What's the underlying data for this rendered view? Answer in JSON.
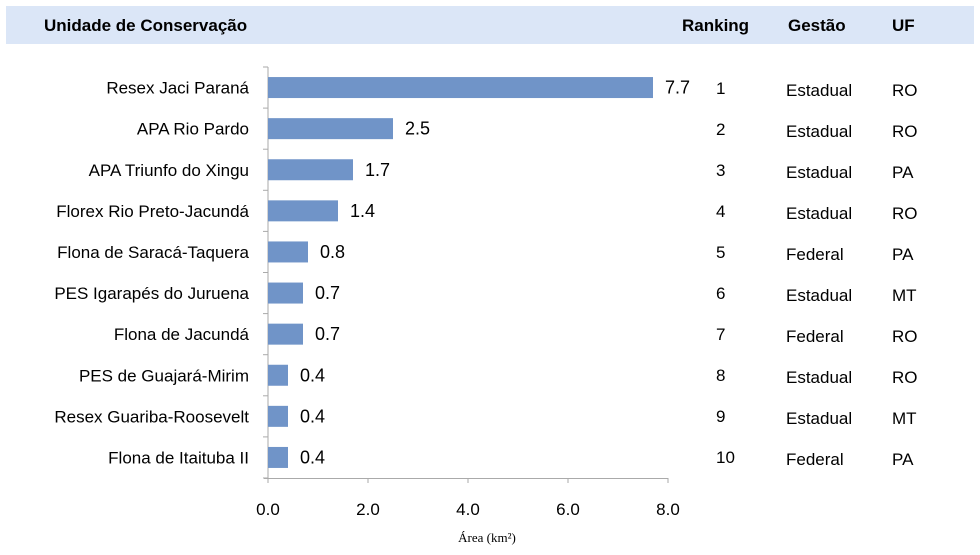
{
  "header": {
    "unit_label": "Unidade de Conservação",
    "ranking_label": "Ranking",
    "gestao_label": "Gestão",
    "uf_label": "UF"
  },
  "colors": {
    "header_bg": "#dbe6f7",
    "bar": "#7094c8",
    "axis": "#aaaaaa"
  },
  "chart_data": {
    "type": "bar",
    "orientation": "horizontal",
    "categories": [
      "Resex  Jaci Paraná",
      "APA  Rio Pardo",
      "APA  Triunfo do Xingu",
      "Florex  Rio Preto-Jacundá",
      "Flona de Saracá-Taquera",
      "PES  Igarapés do Juruena",
      "Flona de Jacundá",
      "PES de Guajará-Mirim",
      "Resex  Guariba-Roosevelt",
      "Flona de Itaituba II"
    ],
    "values": [
      7.7,
      2.5,
      1.7,
      1.4,
      0.8,
      0.7,
      0.7,
      0.4,
      0.4,
      0.4
    ],
    "value_labels": [
      "7.7",
      "2.5",
      "1.7",
      "1.4",
      "0.8",
      "0.7",
      "0.7",
      "0.4",
      "0.4",
      "0.4"
    ],
    "xlabel": "Área (km²)",
    "xlim": [
      0,
      8
    ],
    "xticks": [
      "0.0",
      "2.0",
      "4.0",
      "6.0",
      "8.0"
    ],
    "grid": false
  },
  "rows": [
    {
      "ranking": "1",
      "gestao": "Estadual",
      "uf": "RO"
    },
    {
      "ranking": "2",
      "gestao": "Estadual",
      "uf": "RO"
    },
    {
      "ranking": "3",
      "gestao": "Estadual",
      "uf": "PA"
    },
    {
      "ranking": "4",
      "gestao": "Estadual",
      "uf": "RO"
    },
    {
      "ranking": "5",
      "gestao": "Federal",
      "uf": "PA"
    },
    {
      "ranking": "6",
      "gestao": "Estadual",
      "uf": "MT"
    },
    {
      "ranking": "7",
      "gestao": "Federal",
      "uf": "RO"
    },
    {
      "ranking": "8",
      "gestao": "Estadual",
      "uf": "RO"
    },
    {
      "ranking": "9",
      "gestao": "Estadual",
      "uf": "MT"
    },
    {
      "ranking": "10",
      "gestao": "Federal",
      "uf": "PA"
    }
  ]
}
